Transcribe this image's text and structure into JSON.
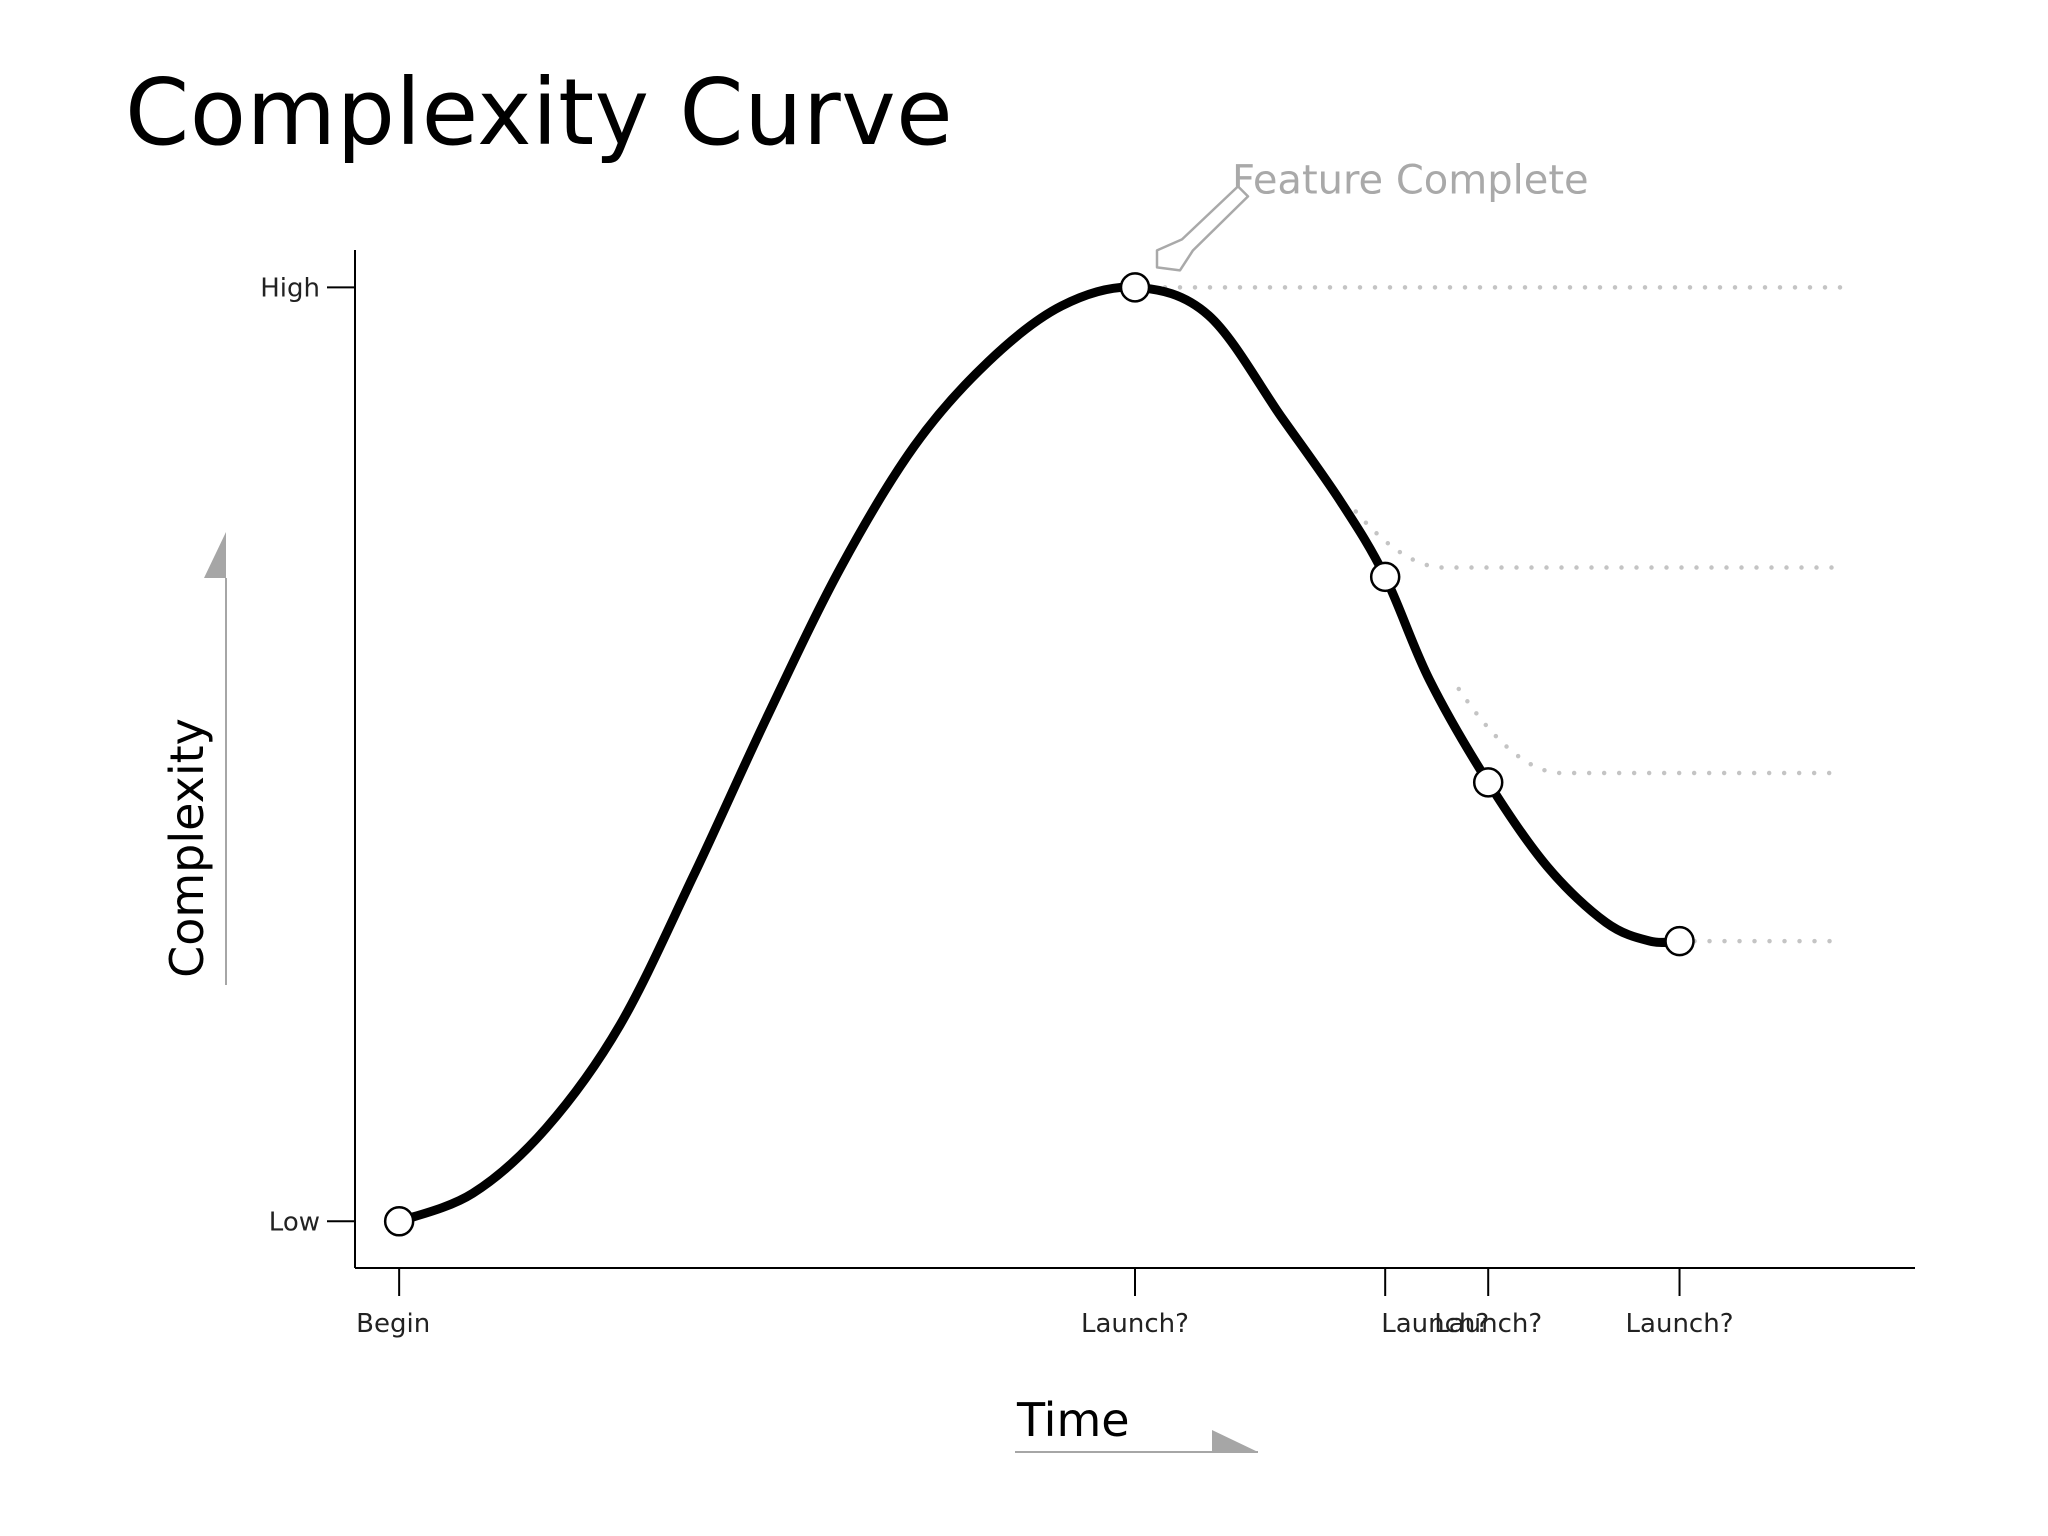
{
  "title": "Complexity Curve",
  "chart_data": {
    "type": "line",
    "title": "Complexity Curve",
    "xlabel": "Time",
    "ylabel": "Complexity",
    "x_ticks": [
      {
        "x": 0,
        "label": "Begin"
      },
      {
        "x": 50,
        "label": "Launch?"
      },
      {
        "x": 67,
        "label": "Launch?"
      },
      {
        "x": 74,
        "label": "Launch?"
      },
      {
        "x": 87,
        "label": "Launch?"
      }
    ],
    "x_tick_marks": [
      0,
      50,
      67,
      74,
      87
    ],
    "y_ticks": [
      {
        "y": 0,
        "label": "Low"
      },
      {
        "y": 100,
        "label": "High"
      }
    ],
    "series": [
      {
        "x": [
          0,
          5,
          10,
          15,
          20,
          25,
          30,
          35,
          40,
          45,
          50,
          55,
          60,
          64,
          67,
          70,
          74,
          78,
          82,
          85,
          87
        ],
        "y": [
          0,
          3,
          10,
          21,
          37,
          54,
          70,
          83,
          92,
          98,
          100,
          97,
          86,
          77,
          69,
          58,
          47,
          38,
          32,
          30,
          30
        ]
      }
    ],
    "markers": [
      {
        "x": 0,
        "y": 0
      },
      {
        "x": 50,
        "y": 100
      },
      {
        "x": 67,
        "y": 69
      },
      {
        "x": 74,
        "y": 47
      },
      {
        "x": 87,
        "y": 30
      }
    ],
    "plateaus": [
      {
        "x_start": 50,
        "x_bend": 50,
        "y_from": 100,
        "y_to": 100,
        "x_end": 98
      },
      {
        "x_start": 65,
        "x_bend": 71,
        "y_from": 76,
        "y_to": 70,
        "x_end": 98
      },
      {
        "x_start": 72,
        "x_bend": 79,
        "y_from": 57,
        "y_to": 48,
        "x_end": 98
      },
      {
        "x_start": 87,
        "x_bend": 87,
        "y_from": 30,
        "y_to": 30,
        "x_end": 98
      }
    ],
    "annotation": {
      "text": "Feature Complete",
      "x": 50,
      "y": 100
    },
    "xlim": [
      -3,
      103
    ],
    "ylim": [
      -5,
      104
    ],
    "grid": false,
    "legend": "none",
    "colors": {
      "curve": "#000000",
      "axis": "#000000",
      "plateau": "#c4c4c4",
      "annotation": "#a9a9a9",
      "axis_arrow": "#a6a6a6",
      "marker_fill": "#ffffff"
    }
  }
}
